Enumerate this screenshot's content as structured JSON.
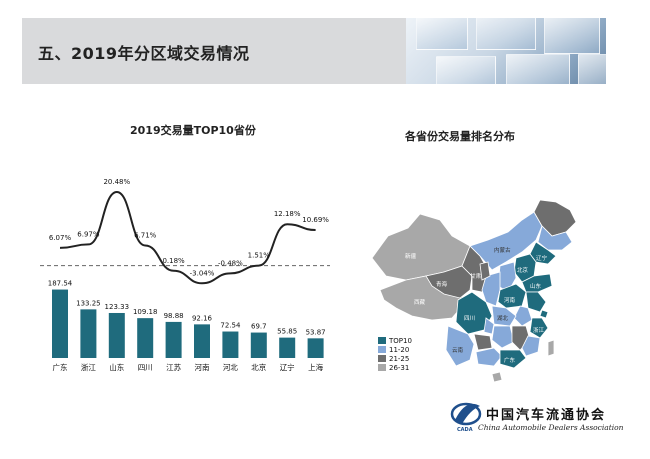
{
  "page": {
    "title": "五、2019年分区域交易情况"
  },
  "chart_data": {
    "type": "bar",
    "title": "2019交易量TOP10省份",
    "categories": [
      "广东",
      "浙江",
      "山东",
      "四川",
      "江苏",
      "河南",
      "河北",
      "北京",
      "辽宁",
      "上海"
    ],
    "series": [
      {
        "type": "bar",
        "values": [
          187.54,
          133.25,
          123.33,
          109.18,
          98.88,
          92.16,
          72.54,
          69.7,
          55.85,
          53.87
        ],
        "value_labels": [
          "187.54",
          "133.25",
          "123.33",
          "109.18",
          "98.88",
          "92.16",
          "72.54",
          "69.7",
          "55.85",
          "53.87"
        ],
        "color": "#1f6b7d"
      },
      {
        "type": "line",
        "values": [
          6.07,
          6.97,
          20.48,
          6.71,
          0.18,
          -3.04,
          -0.48,
          1.51,
          12.18,
          10.69
        ],
        "value_labels": [
          "6.07%",
          "6.97%",
          "20.48%",
          "6.71%",
          "0.18%",
          "-3.04%",
          "-0.48%",
          "1.51%",
          "12.18%",
          "10.69%"
        ],
        "color": "#222222"
      }
    ],
    "reference_line": {
      "value": 1.51,
      "style": "dashed"
    },
    "grid": false,
    "legend": "none"
  },
  "map": {
    "title": "各省份交易量排名分布",
    "legend": [
      {
        "label": "TOP10",
        "color": "#1f6b7d"
      },
      {
        "label": "11-20",
        "color": "#86a9d9"
      },
      {
        "label": "21-25",
        "color": "#6e6e6e"
      },
      {
        "label": "26-31",
        "color": "#a8a8a8"
      }
    ],
    "labels": [
      "新疆",
      "西藏",
      "青海",
      "甘肃",
      "内蒙古",
      "四川",
      "云南",
      "广东",
      "山东",
      "浙江",
      "北京",
      "河南",
      "湖北",
      "辽宁"
    ]
  },
  "logo": {
    "name": "中国汽车流通协会",
    "english": "China Automobile Dealers Association",
    "abbr": "CADA"
  }
}
